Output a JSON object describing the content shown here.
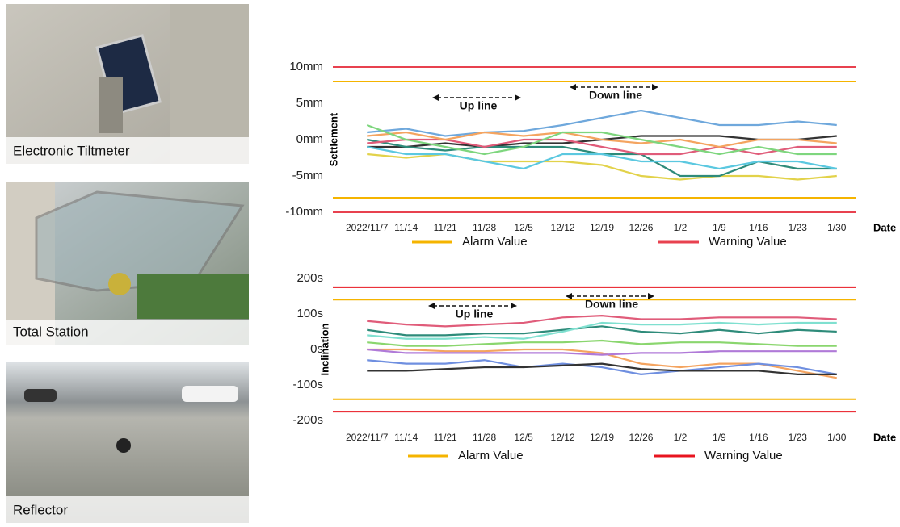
{
  "panels": [
    {
      "caption": "Electronic Tiltmeter"
    },
    {
      "caption": "Total Station"
    },
    {
      "caption": "Reflector"
    }
  ],
  "chart_data": [
    {
      "type": "line",
      "y_label": "Settlement",
      "x_label": "Date",
      "categories": [
        "2022/11/7",
        "11/14",
        "11/21",
        "11/28",
        "12/5",
        "12/12",
        "12/19",
        "12/26",
        "1/2",
        "1/9",
        "1/16",
        "1/23",
        "1/30"
      ],
      "ylim": [
        -11,
        11
      ],
      "yticks": [
        {
          "value": 10,
          "label": "10mm"
        },
        {
          "value": 5,
          "label": "5mm"
        },
        {
          "value": 0,
          "label": "0mm"
        },
        {
          "value": -5,
          "label": "-5mm"
        },
        {
          "value": -10,
          "label": "-10mm"
        }
      ],
      "annotations": [
        "Up line",
        "Down line"
      ],
      "reference_lines": [
        {
          "name": "Alarm Value",
          "color": "#f5b400",
          "values": [
            8,
            -8
          ]
        },
        {
          "name": "Warning Value",
          "color": "#e8414f",
          "values": [
            10,
            -10
          ]
        }
      ],
      "series": [
        {
          "color": "#6fa8dc",
          "values": [
            1,
            1.5,
            0.5,
            1,
            1.2,
            2,
            3,
            4,
            3,
            2,
            2,
            2.5,
            2
          ]
        },
        {
          "color": "#333333",
          "values": [
            -1,
            -1,
            -0.5,
            -1,
            -0.5,
            -0.5,
            0,
            0.5,
            0.5,
            0.5,
            0,
            0,
            0.5
          ]
        },
        {
          "color": "#e2d24a",
          "values": [
            -2,
            -2.5,
            -2,
            -3,
            -3,
            -3,
            -3.5,
            -5,
            -5.5,
            -5,
            -5,
            -5.5,
            -5
          ]
        },
        {
          "color": "#2e8b7a",
          "values": [
            0,
            -1,
            -1.5,
            -1,
            -1,
            -1,
            -2,
            -2,
            -5,
            -5,
            -3,
            -4,
            -4
          ]
        },
        {
          "color": "#e05c7a",
          "values": [
            -0.5,
            0,
            0,
            -1,
            0,
            0,
            -1,
            -2,
            -2,
            -1,
            -2,
            -1,
            -1
          ]
        },
        {
          "color": "#f4a460",
          "values": [
            0.5,
            1,
            0,
            1,
            0.5,
            1,
            0,
            -0.5,
            0,
            -1,
            0,
            0,
            -0.5
          ]
        },
        {
          "color": "#7ed67e",
          "values": [
            2,
            0,
            -1,
            -2,
            -1,
            1,
            1,
            0,
            -1,
            -2,
            -1,
            -2,
            -2
          ]
        },
        {
          "color": "#5bc8e0",
          "values": [
            -1,
            -2,
            -2,
            -3,
            -4,
            -2,
            -2,
            -3,
            -3,
            -4,
            -3,
            -3,
            -4
          ]
        }
      ]
    },
    {
      "type": "line",
      "y_label": "Inclination",
      "x_label": "Date",
      "categories": [
        "2022/11/7",
        "11/14",
        "11/21",
        "11/28",
        "12/5",
        "12/12",
        "12/19",
        "12/26",
        "1/2",
        "1/9",
        "1/16",
        "1/23",
        "1/30"
      ],
      "ylim": [
        -220,
        220
      ],
      "yticks": [
        {
          "value": 200,
          "label": "200s"
        },
        {
          "value": 100,
          "label": "100s"
        },
        {
          "value": 0,
          "label": "0s"
        },
        {
          "value": -100,
          "label": "-100s"
        },
        {
          "value": -200,
          "label": "-200s"
        }
      ],
      "annotations": [
        "Up line",
        "Down line"
      ],
      "reference_lines": [
        {
          "name": "Alarm Value",
          "color": "#f5b400",
          "values": [
            140,
            -140
          ]
        },
        {
          "name": "Warning Value",
          "color": "#e8141f",
          "values": [
            175,
            -175
          ]
        }
      ],
      "series": [
        {
          "color": "#e05c7a",
          "values": [
            80,
            70,
            65,
            70,
            75,
            90,
            95,
            85,
            85,
            90,
            90,
            90,
            85
          ]
        },
        {
          "color": "#2e8b7a",
          "values": [
            55,
            40,
            40,
            45,
            45,
            55,
            65,
            50,
            45,
            55,
            45,
            55,
            50
          ]
        },
        {
          "color": "#7fe0d0",
          "values": [
            40,
            30,
            30,
            35,
            30,
            50,
            75,
            70,
            70,
            75,
            70,
            75,
            75
          ]
        },
        {
          "color": "#8ad66e",
          "values": [
            20,
            10,
            10,
            15,
            20,
            20,
            25,
            15,
            20,
            20,
            15,
            10,
            10
          ]
        },
        {
          "color": "#f4a460",
          "values": [
            0,
            0,
            -5,
            -5,
            0,
            0,
            -10,
            -40,
            -50,
            -40,
            -40,
            -60,
            -80
          ]
        },
        {
          "color": "#b07ad8",
          "values": [
            0,
            -10,
            -10,
            -10,
            -10,
            -10,
            -15,
            -10,
            -10,
            -5,
            -5,
            -5,
            -5
          ]
        },
        {
          "color": "#6f8fe0",
          "values": [
            -30,
            -40,
            -40,
            -30,
            -50,
            -40,
            -50,
            -70,
            -60,
            -50,
            -40,
            -50,
            -70
          ]
        },
        {
          "color": "#333333",
          "values": [
            -60,
            -60,
            -55,
            -50,
            -50,
            -45,
            -40,
            -55,
            -60,
            -60,
            -60,
            -70,
            -70
          ]
        }
      ]
    }
  ]
}
